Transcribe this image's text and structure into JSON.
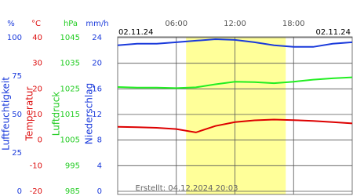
{
  "chart_data": {
    "type": "line",
    "date_start": "02.11.24",
    "date_end": "02.11.24",
    "footer": "Erstellt: 04.12.2024 20:03",
    "x": [
      0,
      2,
      4,
      6,
      8,
      10,
      12,
      14,
      16,
      18,
      20,
      22,
      24
    ],
    "xlim": [
      0,
      24
    ],
    "xticks": [
      {
        "value": 6,
        "label": "06:00"
      },
      {
        "value": 12,
        "label": "12:00"
      },
      {
        "value": 18,
        "label": "18:00"
      }
    ],
    "daylight": [
      7,
      17.2
    ],
    "grid": true,
    "axes": [
      {
        "unit": "%",
        "title": "Luftfeuchtigkeit",
        "color": "#1a3adb",
        "ylim": [
          0,
          100
        ],
        "yticks": [
          0,
          25,
          50,
          75,
          100
        ]
      },
      {
        "unit": "°C",
        "title": "Temperatur",
        "color": "#dd1111",
        "ylim": [
          -20,
          40
        ],
        "yticks": [
          -20,
          -10,
          0,
          10,
          20,
          30,
          40
        ]
      },
      {
        "unit": "hPa",
        "title": "Luftdruck",
        "color": "#22cc22",
        "ylim": [
          985,
          1045
        ],
        "yticks": [
          985,
          995,
          1005,
          1015,
          1025,
          1035,
          1045
        ]
      },
      {
        "unit": "mm/h",
        "title": "Niederschlag",
        "color": "#1a3adb",
        "ylim": [
          0,
          24
        ],
        "yticks": [
          0,
          4,
          8,
          12,
          16,
          20,
          24
        ]
      }
    ],
    "series": [
      {
        "axis": 0,
        "color": "#1a3adb",
        "values": [
          95,
          96,
          96,
          97,
          98,
          99,
          98.5,
          97,
          95,
          94,
          94,
          96,
          97
        ]
      },
      {
        "axis": 1,
        "color": "#dd0000",
        "values": [
          5.2,
          5.0,
          4.8,
          4.3,
          3.0,
          5.5,
          7.0,
          7.7,
          8.0,
          7.8,
          7.5,
          7.0,
          6.5
        ]
      },
      {
        "axis": 2,
        "color": "#22ee22",
        "values": [
          1025.7,
          1025.5,
          1025.5,
          1025.3,
          1025.6,
          1026.8,
          1027.8,
          1027.6,
          1027.2,
          1027.8,
          1028.6,
          1029.1,
          1029.5
        ]
      }
    ]
  }
}
